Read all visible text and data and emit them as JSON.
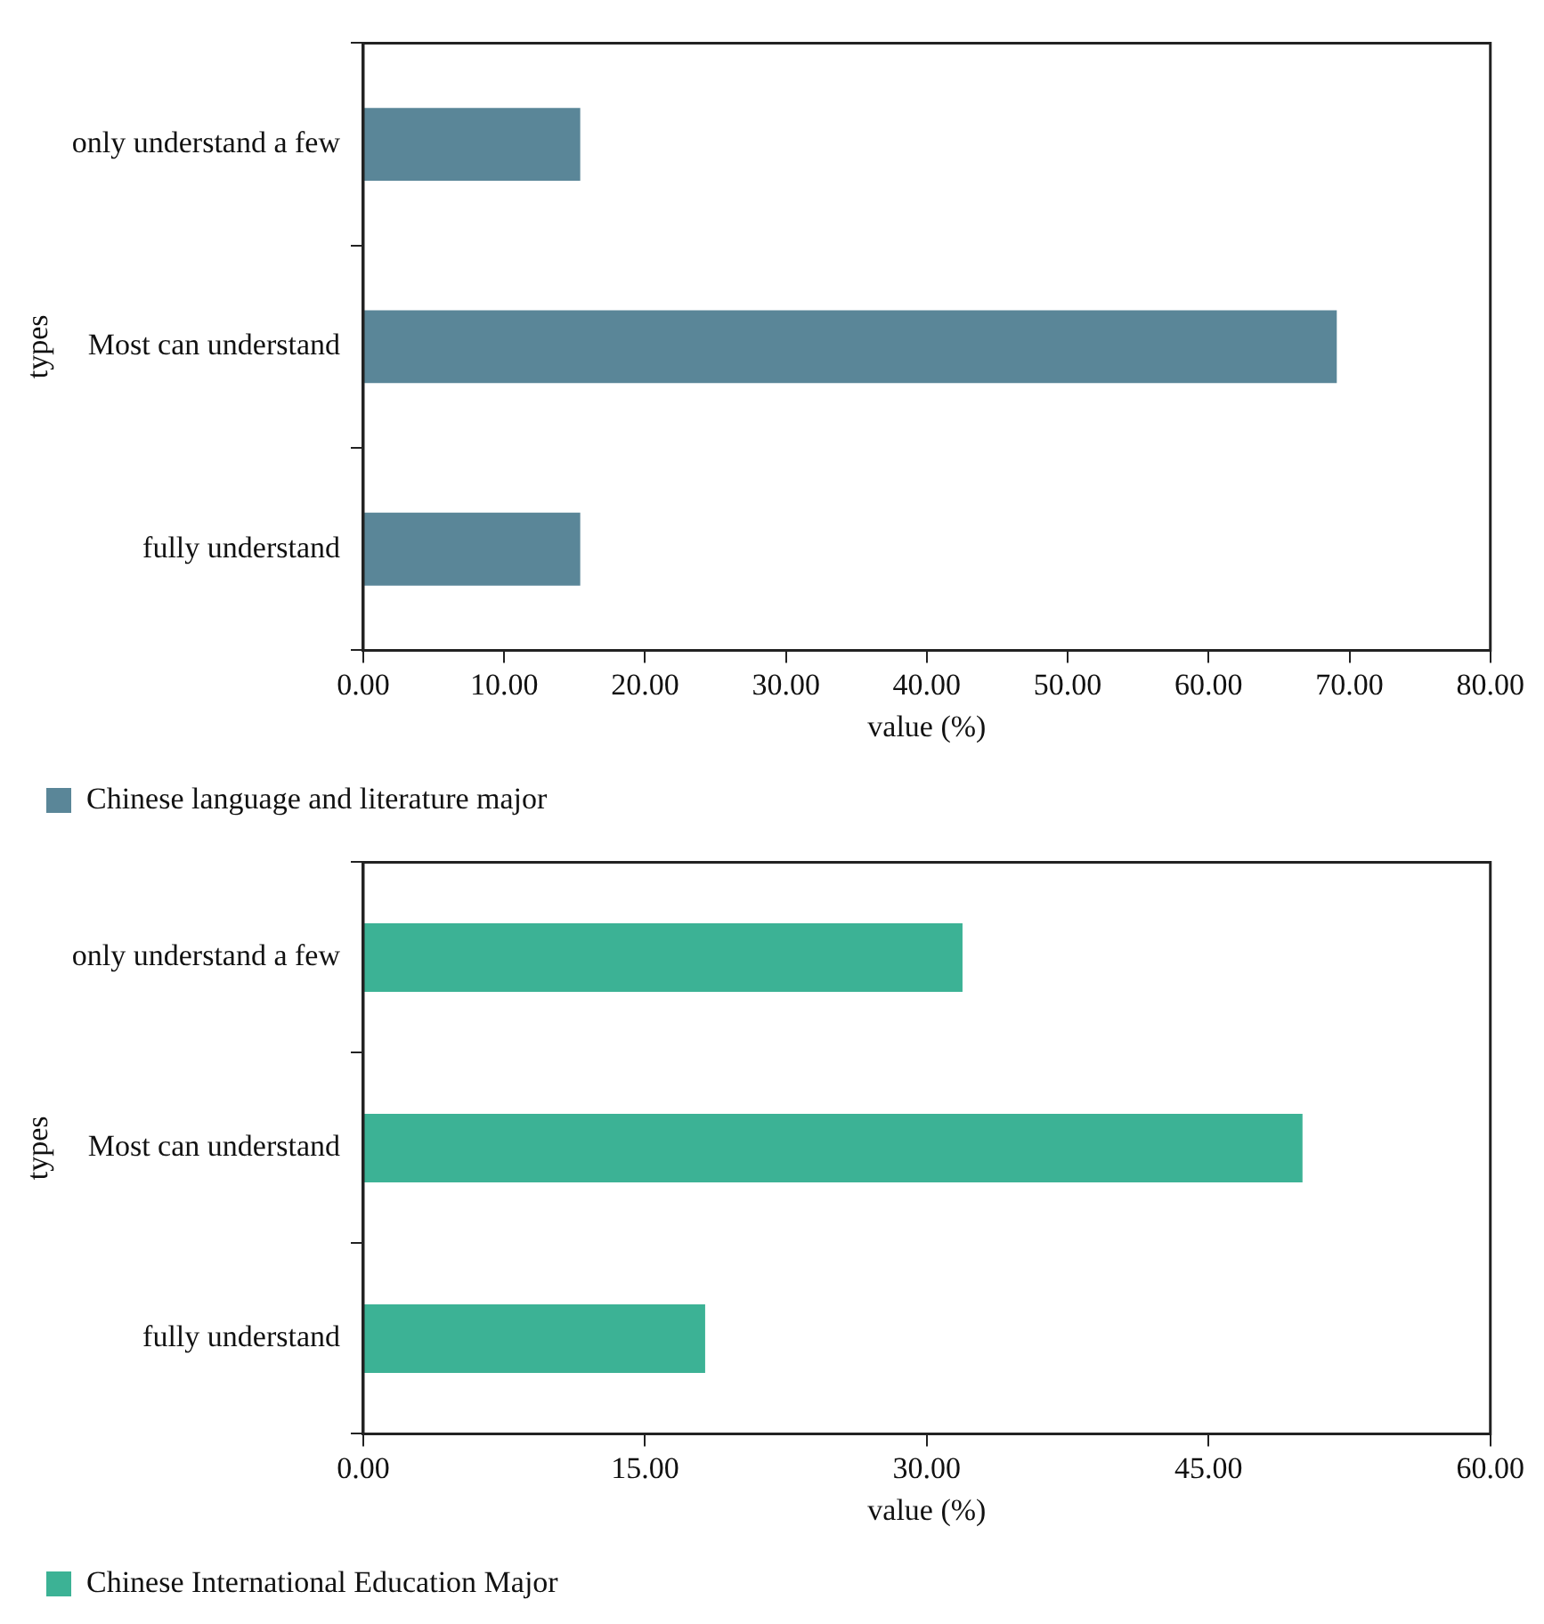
{
  "chart_data": [
    {
      "type": "bar",
      "orientation": "horizontal",
      "categories": [
        "only understand a few",
        "Most can understand",
        "fully understand"
      ],
      "xlabel": "value (%)",
      "ylabel": "types",
      "xlim": [
        0,
        80
      ],
      "xticks": [
        {
          "value": 0,
          "label": "0.00"
        },
        {
          "value": 10,
          "label": "10.00"
        },
        {
          "value": 20,
          "label": "20.00"
        },
        {
          "value": 30,
          "label": "30.00"
        },
        {
          "value": 40,
          "label": "40.00"
        },
        {
          "value": 50,
          "label": "50.00"
        },
        {
          "value": 60,
          "label": "60.00"
        },
        {
          "value": 70,
          "label": "70.00"
        },
        {
          "value": 80,
          "label": "80.00"
        }
      ],
      "grid": false,
      "legend": "bottom left",
      "series": [
        {
          "name": "Chinese language and literature major",
          "color": "#5a8698",
          "values": [
            15.4,
            69.1,
            15.4
          ]
        }
      ]
    },
    {
      "type": "bar",
      "orientation": "horizontal",
      "categories": [
        "only understand a few",
        "Most can understand",
        "fully understand"
      ],
      "xlabel": "value (%)",
      "ylabel": "types",
      "xlim": [
        0,
        60
      ],
      "xticks": [
        {
          "value": 0,
          "label": "0.00"
        },
        {
          "value": 15,
          "label": "15.00"
        },
        {
          "value": 30,
          "label": "30.00"
        },
        {
          "value": 45,
          "label": "45.00"
        },
        {
          "value": 60,
          "label": "60.00"
        }
      ],
      "grid": false,
      "legend": "bottom left",
      "series": [
        {
          "name": "Chinese International Education Major",
          "color": "#3cb295",
          "values": [
            31.9,
            50.0,
            18.2
          ]
        }
      ]
    }
  ]
}
